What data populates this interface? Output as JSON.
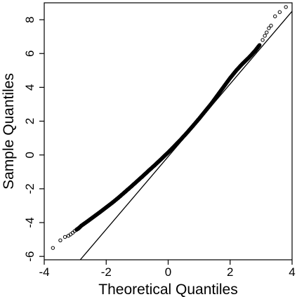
{
  "chart_data": {
    "type": "scatter",
    "title": "",
    "xlabel": "Theoretical Quantiles",
    "ylabel": "Sample Quantiles",
    "xlim": [
      -4.0,
      4.0
    ],
    "ylim": [
      -6.2,
      9.0
    ],
    "x_ticks": [
      -4,
      -2,
      0,
      2,
      4
    ],
    "y_ticks": [
      -6,
      -4,
      -2,
      0,
      2,
      4,
      6,
      8
    ],
    "x_tick_labels": [
      "-4",
      "-2",
      "0",
      "2",
      "4"
    ],
    "y_tick_labels": [
      "-6",
      "-4",
      "-2",
      "0",
      "2",
      "4",
      "6",
      "8"
    ],
    "reference_line": {
      "intercept": -0.1,
      "slope": 2.15
    },
    "grid": false,
    "legend": "none",
    "series": [
      {
        "x": [
          -3.72,
          -3.48,
          -3.33,
          -3.22,
          -3.15,
          -3.08,
          -3.02,
          -2.96,
          -2.9,
          -2.8,
          -2.6,
          -2.4,
          -2.2,
          -2.0,
          -1.8,
          -1.6,
          -1.4,
          -1.2,
          -1.0,
          -0.8,
          -0.6,
          -0.4,
          -0.2,
          0.0,
          0.2,
          0.4,
          0.6,
          0.8,
          1.0,
          1.2,
          1.4,
          1.6,
          1.8,
          2.0,
          2.2,
          2.4,
          2.6,
          2.8,
          2.95,
          3.05,
          3.12,
          3.18,
          3.25,
          3.32,
          3.45,
          3.6,
          3.8
        ],
        "y": [
          -5.5,
          -5.05,
          -4.85,
          -4.78,
          -4.7,
          -4.6,
          -4.5,
          -4.42,
          -4.35,
          -4.18,
          -3.92,
          -3.65,
          -3.38,
          -3.1,
          -2.82,
          -2.52,
          -2.2,
          -1.88,
          -1.55,
          -1.22,
          -0.88,
          -0.55,
          -0.2,
          0.15,
          0.52,
          0.9,
          1.3,
          1.72,
          2.15,
          2.6,
          3.05,
          3.55,
          4.05,
          4.55,
          5.0,
          5.4,
          5.75,
          6.15,
          6.5,
          6.8,
          7.05,
          7.25,
          7.5,
          7.65,
          8.2,
          8.45,
          8.75
        ]
      }
    ]
  }
}
